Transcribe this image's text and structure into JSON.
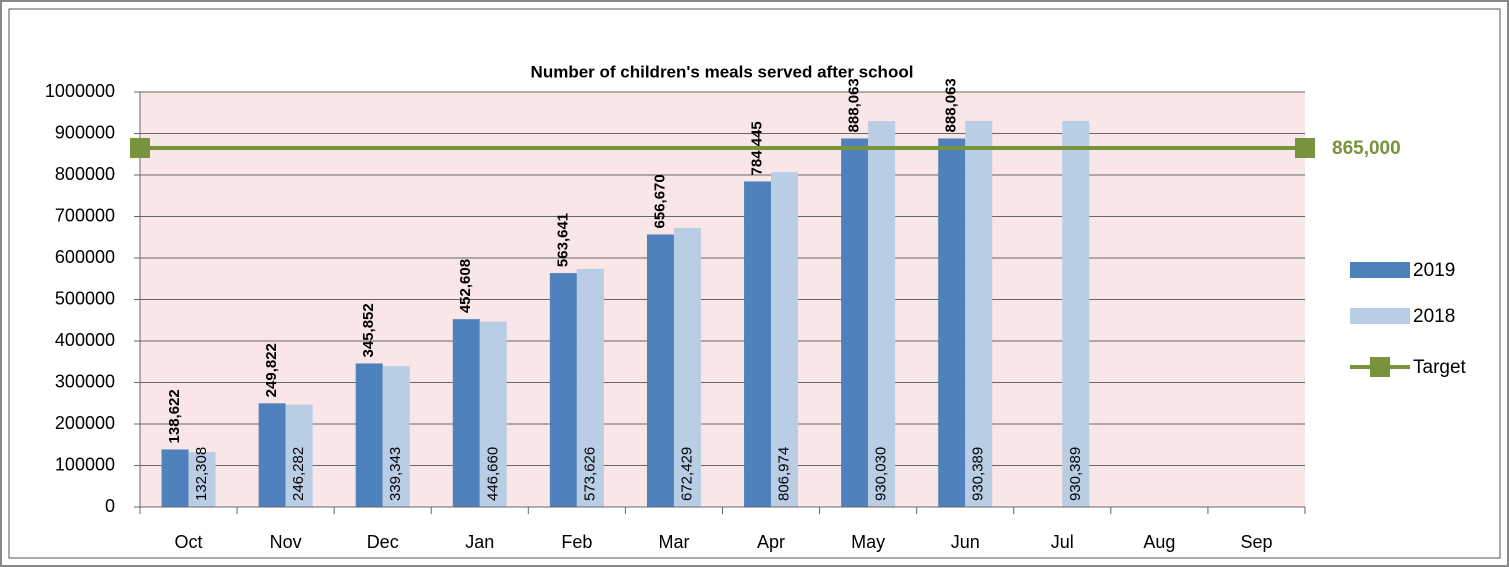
{
  "chart_data": {
    "type": "bar",
    "title": "Number of children's meals served after school",
    "categories": [
      "Oct",
      "Nov",
      "Dec",
      "Jan",
      "Feb",
      "Mar",
      "Apr",
      "May",
      "Jun",
      "Jul",
      "Aug",
      "Sep"
    ],
    "series": [
      {
        "name": "2019",
        "color": "#4f81bd",
        "values": [
          138622,
          249822,
          345852,
          452608,
          563641,
          656670,
          784445,
          888063,
          888063,
          null,
          null,
          null
        ],
        "value_labels": [
          "138,622",
          "249,822",
          "345,852",
          "452,608",
          "563,641",
          "656,670",
          "784,445",
          "888,063",
          "888,063",
          null,
          null,
          null
        ]
      },
      {
        "name": "2018",
        "color": "#b9cde5",
        "values": [
          132308,
          246282,
          339343,
          446660,
          573626,
          672429,
          806974,
          930030,
          930389,
          930389,
          null,
          null
        ],
        "value_labels": [
          "132,308",
          "246,282",
          "339,343",
          "446,660",
          "573,626",
          "672,429",
          "806,974",
          "930,030",
          "930,389",
          "930,389",
          null,
          null
        ]
      }
    ],
    "target": {
      "name": "Target",
      "value": 865000,
      "label": "865,000",
      "color": "#77933c"
    },
    "ylim": [
      0,
      1000000
    ],
    "yticks": [
      0,
      100000,
      200000,
      300000,
      400000,
      500000,
      600000,
      700000,
      800000,
      900000,
      1000000
    ],
    "grid": true,
    "legend": "right"
  }
}
